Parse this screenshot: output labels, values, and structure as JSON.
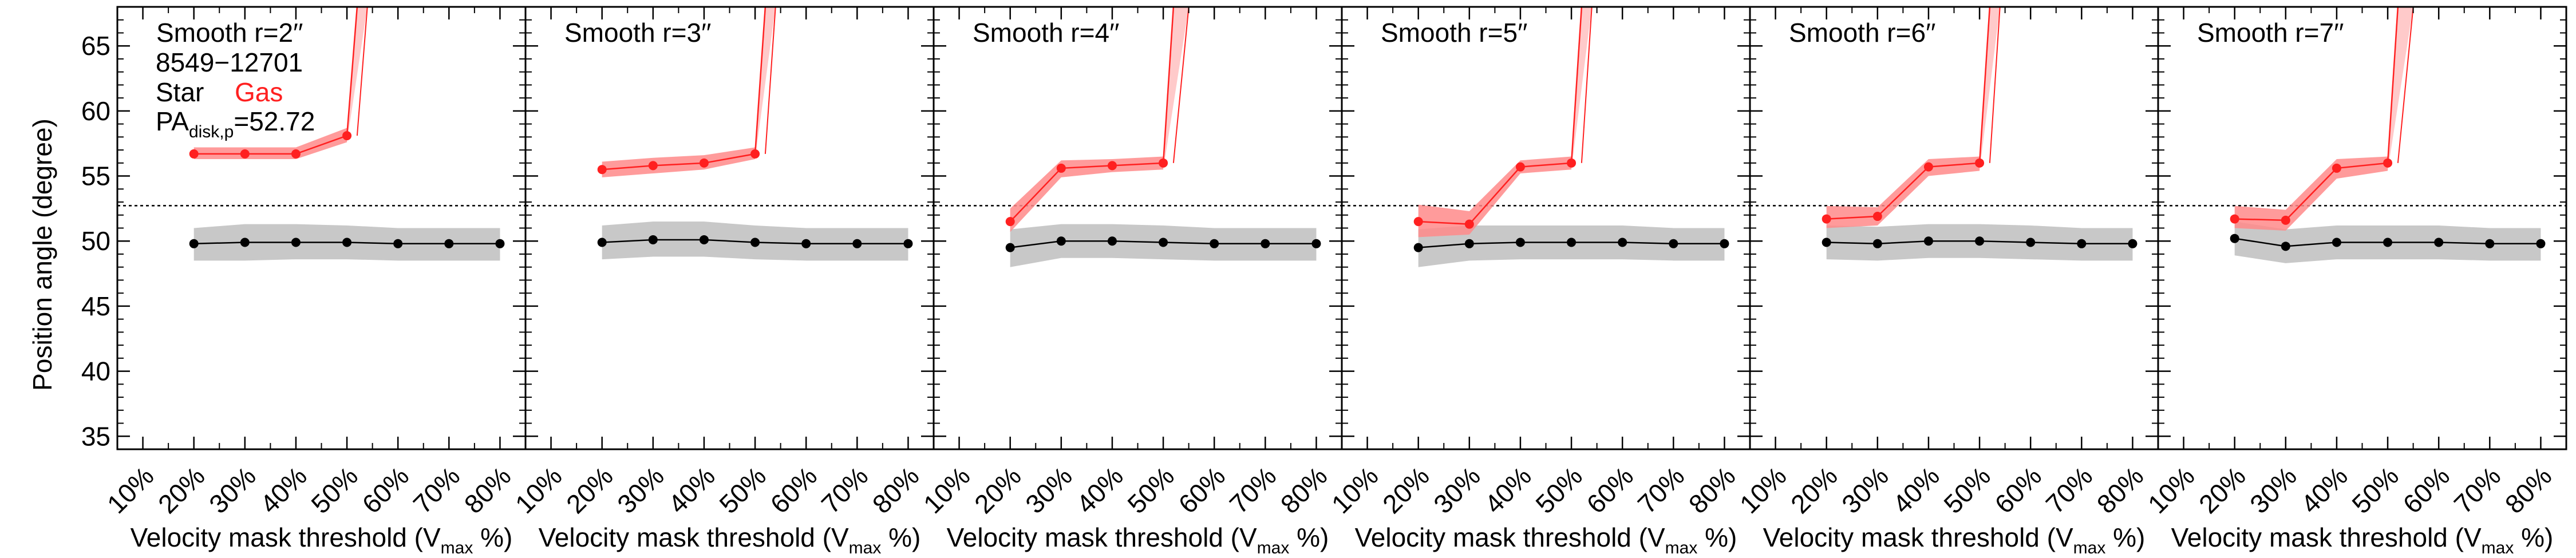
{
  "figure": {
    "ylabel": "Position angle (degree)",
    "xlabel_main": "Velocity mask threshold (V",
    "xlabel_sub": "max",
    "xlabel_end": " %)",
    "galaxy_id": "8549−12701",
    "legend_star": "Star",
    "legend_gas": "Gas",
    "pa_label_main": "PA",
    "pa_label_sub": "disk,p",
    "pa_label_value": "=52.72",
    "colors": {
      "star": "#000000",
      "star_band": "#c8c8c8",
      "gas": "#ff2020",
      "gas_band": "#ff8a8a",
      "reference_line": "#000000"
    }
  },
  "chart_data": [
    {
      "type": "line",
      "title": "Smooth r=2′′",
      "categories": [
        "10%",
        "20%",
        "30%",
        "40%",
        "50%",
        "60%",
        "70%",
        "80%"
      ],
      "ylim": [
        34,
        68
      ],
      "reference_line": 52.72,
      "series": [
        {
          "name": "Star",
          "x": [
            2,
            3,
            4,
            5,
            6,
            7,
            8
          ],
          "values": [
            49.8,
            49.9,
            49.9,
            49.9,
            49.8,
            49.8,
            49.8
          ],
          "lower": [
            48.5,
            48.5,
            48.6,
            48.6,
            48.5,
            48.5,
            48.5
          ],
          "upper": [
            51.0,
            51.3,
            51.3,
            51.2,
            51.0,
            51.0,
            51.0
          ]
        },
        {
          "name": "Gas",
          "x": [
            2,
            3,
            4,
            5
          ],
          "values": [
            56.7,
            56.7,
            56.7,
            58.1
          ],
          "lower": [
            56.3,
            56.3,
            56.3,
            57.6
          ],
          "upper": [
            57.2,
            57.2,
            57.2,
            58.7
          ],
          "beyond_x": [
            5.2,
            5.4
          ],
          "beyond_lower": [
            58.1,
            58.1
          ],
          "beyond_upper": [
            68.0,
            68.0
          ]
        }
      ]
    },
    {
      "type": "line",
      "title": "Smooth r=3′′",
      "categories": [
        "10%",
        "20%",
        "30%",
        "40%",
        "50%",
        "60%",
        "70%",
        "80%"
      ],
      "ylim": [
        34,
        68
      ],
      "reference_line": 52.72,
      "series": [
        {
          "name": "Star",
          "x": [
            2,
            3,
            4,
            5,
            6,
            7,
            8
          ],
          "values": [
            49.9,
            50.1,
            50.1,
            49.9,
            49.8,
            49.8,
            49.8
          ],
          "lower": [
            48.6,
            48.8,
            48.8,
            48.6,
            48.5,
            48.5,
            48.5
          ],
          "upper": [
            51.2,
            51.5,
            51.5,
            51.2,
            51.0,
            51.0,
            51.0
          ]
        },
        {
          "name": "Gas",
          "x": [
            2,
            3,
            4,
            5
          ],
          "values": [
            55.5,
            55.8,
            56.0,
            56.7
          ],
          "lower": [
            54.9,
            55.2,
            55.5,
            56.3
          ],
          "upper": [
            56.1,
            56.4,
            56.6,
            57.2
          ],
          "beyond_x": [
            5.2,
            5.4
          ],
          "beyond_lower": [
            56.7,
            56.7
          ],
          "beyond_upper": [
            68.0,
            68.0
          ]
        }
      ]
    },
    {
      "type": "line",
      "title": "Smooth r=4′′",
      "categories": [
        "10%",
        "20%",
        "30%",
        "40%",
        "50%",
        "60%",
        "70%",
        "80%"
      ],
      "ylim": [
        34,
        68
      ],
      "reference_line": 52.72,
      "series": [
        {
          "name": "Star",
          "x": [
            2,
            3,
            4,
            5,
            6,
            7,
            8
          ],
          "values": [
            49.5,
            50.0,
            50.0,
            49.9,
            49.8,
            49.8,
            49.8
          ],
          "lower": [
            48.0,
            48.7,
            48.7,
            48.6,
            48.5,
            48.5,
            48.5
          ],
          "upper": [
            50.9,
            51.3,
            51.3,
            51.2,
            51.0,
            51.0,
            51.0
          ]
        },
        {
          "name": "Gas",
          "x": [
            2,
            3,
            4,
            5
          ],
          "values": [
            51.5,
            55.6,
            55.8,
            56.0
          ],
          "lower": [
            50.7,
            54.9,
            55.3,
            55.5
          ],
          "upper": [
            52.5,
            56.2,
            56.3,
            56.5
          ],
          "beyond_x": [
            5.2,
            5.5
          ],
          "beyond_lower": [
            56.0,
            56.0
          ],
          "beyond_upper": [
            68.0,
            68.0
          ]
        }
      ]
    },
    {
      "type": "line",
      "title": "Smooth r=5′′",
      "categories": [
        "10%",
        "20%",
        "30%",
        "40%",
        "50%",
        "60%",
        "70%",
        "80%"
      ],
      "ylim": [
        34,
        68
      ],
      "reference_line": 52.72,
      "series": [
        {
          "name": "Star",
          "x": [
            2,
            3,
            4,
            5,
            6,
            7,
            8
          ],
          "values": [
            49.5,
            49.8,
            49.9,
            49.9,
            49.9,
            49.8,
            49.8
          ],
          "lower": [
            48.0,
            48.5,
            48.6,
            48.6,
            48.6,
            48.5,
            48.5
          ],
          "upper": [
            50.9,
            51.2,
            51.2,
            51.2,
            51.2,
            51.0,
            51.0
          ]
        },
        {
          "name": "Gas",
          "x": [
            2,
            3,
            4,
            5
          ],
          "values": [
            51.5,
            51.3,
            55.7,
            56.0
          ],
          "lower": [
            50.3,
            50.5,
            55.2,
            55.5
          ],
          "upper": [
            52.8,
            52.3,
            56.2,
            56.5
          ],
          "beyond_x": [
            5.2,
            5.4
          ],
          "beyond_lower": [
            56.0,
            56.0
          ],
          "beyond_upper": [
            68.0,
            68.0
          ]
        }
      ]
    },
    {
      "type": "line",
      "title": "Smooth r=6′′",
      "categories": [
        "10%",
        "20%",
        "30%",
        "40%",
        "50%",
        "60%",
        "70%",
        "80%"
      ],
      "ylim": [
        34,
        68
      ],
      "reference_line": 52.72,
      "series": [
        {
          "name": "Star",
          "x": [
            2,
            3,
            4,
            5,
            6,
            7,
            8
          ],
          "values": [
            49.9,
            49.8,
            50.0,
            50.0,
            49.9,
            49.8,
            49.8
          ],
          "lower": [
            48.6,
            48.5,
            48.7,
            48.7,
            48.6,
            48.5,
            48.5
          ],
          "upper": [
            51.2,
            51.1,
            51.3,
            51.3,
            51.2,
            51.0,
            51.0
          ]
        },
        {
          "name": "Gas",
          "x": [
            2,
            3,
            4,
            5
          ],
          "values": [
            51.7,
            51.9,
            55.7,
            56.0
          ],
          "lower": [
            51.0,
            51.2,
            55.0,
            55.4
          ],
          "upper": [
            52.7,
            52.6,
            56.3,
            56.5
          ],
          "beyond_x": [
            5.2,
            5.4
          ],
          "beyond_lower": [
            56.0,
            56.0
          ],
          "beyond_upper": [
            68.0,
            68.0
          ]
        }
      ]
    },
    {
      "type": "line",
      "title": "Smooth r=7′′",
      "categories": [
        "10%",
        "20%",
        "30%",
        "40%",
        "50%",
        "60%",
        "70%",
        "80%"
      ],
      "ylim": [
        34,
        68
      ],
      "reference_line": 52.72,
      "series": [
        {
          "name": "Star",
          "x": [
            2,
            3,
            4,
            5,
            6,
            7,
            8
          ],
          "values": [
            50.2,
            49.6,
            49.9,
            49.9,
            49.9,
            49.8,
            49.8
          ],
          "lower": [
            48.9,
            48.3,
            48.6,
            48.6,
            48.6,
            48.5,
            48.5
          ],
          "upper": [
            51.5,
            50.9,
            51.2,
            51.2,
            51.2,
            51.0,
            51.0
          ]
        },
        {
          "name": "Gas",
          "x": [
            2,
            3,
            4,
            5
          ],
          "values": [
            51.7,
            51.6,
            55.6,
            56.0
          ],
          "lower": [
            51.0,
            50.8,
            54.8,
            55.4
          ],
          "upper": [
            52.7,
            52.4,
            56.3,
            56.5
          ],
          "beyond_x": [
            5.2,
            5.5
          ],
          "beyond_lower": [
            56.0,
            56.0
          ],
          "beyond_upper": [
            68.0,
            68.0
          ]
        }
      ]
    }
  ]
}
